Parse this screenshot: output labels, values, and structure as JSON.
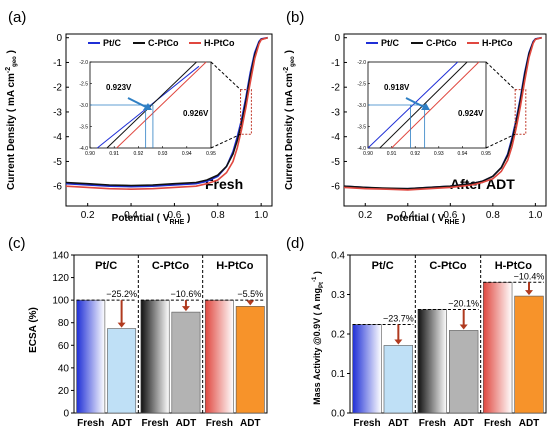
{
  "chart_data": [
    {
      "panel": "(a)",
      "type": "line",
      "ylabel": "Current Density ( mA cm",
      "ylabel_sup": "-2",
      "ylabel_sub": "geo",
      "ylabel_end": " )",
      "xlabel": "Potential ( V",
      "xlabel_sub": "RHE",
      "xlabel_end": " )",
      "xlim": [
        0.1,
        1.05
      ],
      "ylim": [
        -6.8,
        0.15
      ],
      "xticks": [
        "0.2",
        "0.4",
        "0.6",
        "0.8",
        "1.0"
      ],
      "yticks": [
        "0",
        "-1",
        "-2",
        "-3",
        "-4",
        "-5",
        "-6"
      ],
      "annotation": "Fresh",
      "series": [
        {
          "name": "Pt/C",
          "color": "#1f2fd6",
          "x": [
            0.1,
            0.2,
            0.3,
            0.4,
            0.5,
            0.6,
            0.7,
            0.75,
            0.8,
            0.84,
            0.87,
            0.89,
            0.91,
            0.92,
            0.93,
            0.94,
            0.95,
            0.97,
            0.99,
            1.0,
            1.03
          ],
          "y": [
            -5.9,
            -5.95,
            -6.0,
            -6.02,
            -6.0,
            -5.95,
            -5.9,
            -5.8,
            -5.6,
            -5.2,
            -4.6,
            -4.0,
            -3.3,
            -2.85,
            -2.4,
            -1.9,
            -1.4,
            -0.6,
            -0.15,
            -0.05,
            0.0
          ]
        },
        {
          "name": "C-PtCo",
          "color": "#111111",
          "x": [
            0.1,
            0.2,
            0.3,
            0.4,
            0.5,
            0.6,
            0.7,
            0.75,
            0.8,
            0.84,
            0.87,
            0.89,
            0.91,
            0.92,
            0.93,
            0.94,
            0.95,
            0.97,
            0.99,
            1.0,
            1.03
          ],
          "y": [
            -5.85,
            -5.9,
            -5.95,
            -5.97,
            -5.95,
            -5.9,
            -5.85,
            -5.75,
            -5.55,
            -5.2,
            -4.7,
            -4.15,
            -3.45,
            -3.0,
            -2.55,
            -2.05,
            -1.55,
            -0.7,
            -0.2,
            -0.07,
            0.0
          ]
        },
        {
          "name": "H-PtCo",
          "color": "#e0473f",
          "x": [
            0.1,
            0.2,
            0.3,
            0.4,
            0.5,
            0.6,
            0.7,
            0.75,
            0.8,
            0.84,
            0.87,
            0.89,
            0.91,
            0.92,
            0.93,
            0.94,
            0.95,
            0.97,
            0.99,
            1.0,
            1.03
          ],
          "y": [
            -6.0,
            -6.05,
            -6.1,
            -6.12,
            -6.1,
            -6.05,
            -6.0,
            -5.9,
            -5.75,
            -5.45,
            -5.0,
            -4.45,
            -3.7,
            -3.25,
            -2.8,
            -2.3,
            -1.8,
            -0.85,
            -0.25,
            -0.08,
            0.0
          ]
        }
      ],
      "inset": {
        "xlim": [
          0.9,
          0.95
        ],
        "ylim": [
          -4.0,
          -2.0
        ],
        "xticks": [
          "0.90",
          "0.91",
          "0.92",
          "0.93",
          "0.94",
          "0.95"
        ],
        "yticks": [
          "-2.0",
          "-2.5",
          "-3.0",
          "-3.5",
          "-4.0"
        ],
        "labels": [
          "0.923V",
          "0.926V"
        ],
        "marks": [
          0.923,
          0.926
        ],
        "series_y": [
          [
            -4.0,
            -2.1
          ],
          [
            -4.0,
            -2.0
          ],
          [
            -4.0,
            -2.0
          ]
        ],
        "series_x": [
          [
            0.903,
            0.945
          ],
          [
            0.907,
            0.944
          ],
          [
            0.911,
            0.948
          ]
        ]
      }
    },
    {
      "panel": "(b)",
      "type": "line",
      "ylabel": "Current Density ( mA cm",
      "ylabel_sup": "-2",
      "ylabel_sub": "geo",
      "ylabel_end": " )",
      "xlabel": "Potential ( V",
      "xlabel_sub": "RHE",
      "xlabel_end": " )",
      "xlim": [
        0.1,
        1.05
      ],
      "ylim": [
        -6.8,
        0.15
      ],
      "xticks": [
        "0.2",
        "0.4",
        "0.6",
        "0.8",
        "1.0"
      ],
      "yticks": [
        "0",
        "-1",
        "-2",
        "-3",
        "-4",
        "-5",
        "-6"
      ],
      "annotation": "After ADT",
      "series": [
        {
          "name": "Pt/C",
          "color": "#1f2fd6",
          "x": [
            0.1,
            0.2,
            0.3,
            0.4,
            0.5,
            0.6,
            0.7,
            0.75,
            0.8,
            0.84,
            0.87,
            0.89,
            0.91,
            0.92,
            0.93,
            0.94,
            0.95,
            0.97,
            0.99,
            1.0,
            1.03
          ],
          "y": [
            -6.0,
            -6.05,
            -6.1,
            -6.1,
            -6.05,
            -6.0,
            -5.9,
            -5.8,
            -5.6,
            -5.25,
            -4.7,
            -4.05,
            -3.3,
            -2.85,
            -2.4,
            -1.9,
            -1.4,
            -0.6,
            -0.15,
            -0.05,
            0.0
          ]
        },
        {
          "name": "C-PtCo",
          "color": "#111111",
          "x": [
            0.1,
            0.2,
            0.3,
            0.4,
            0.5,
            0.6,
            0.7,
            0.75,
            0.8,
            0.84,
            0.87,
            0.89,
            0.91,
            0.92,
            0.93,
            0.94,
            0.95,
            0.97,
            0.99,
            1.0,
            1.03
          ],
          "y": [
            -6.0,
            -6.05,
            -6.08,
            -6.1,
            -6.05,
            -6.0,
            -5.9,
            -5.8,
            -5.6,
            -5.25,
            -4.75,
            -4.15,
            -3.4,
            -2.95,
            -2.5,
            -2.0,
            -1.5,
            -0.65,
            -0.18,
            -0.06,
            0.0
          ]
        },
        {
          "name": "H-PtCo",
          "color": "#e0473f",
          "x": [
            0.1,
            0.2,
            0.3,
            0.4,
            0.5,
            0.6,
            0.7,
            0.75,
            0.8,
            0.84,
            0.87,
            0.89,
            0.91,
            0.92,
            0.93,
            0.94,
            0.95,
            0.97,
            0.99,
            1.0,
            1.03
          ],
          "y": [
            -6.05,
            -6.1,
            -6.12,
            -6.15,
            -6.1,
            -6.05,
            -5.95,
            -5.85,
            -5.7,
            -5.4,
            -4.95,
            -4.4,
            -3.65,
            -3.2,
            -2.75,
            -2.25,
            -1.75,
            -0.8,
            -0.22,
            -0.07,
            0.0
          ]
        }
      ],
      "inset": {
        "xlim": [
          0.9,
          0.95
        ],
        "ylim": [
          -4.0,
          -2.0
        ],
        "xticks": [
          "0.90",
          "0.91",
          "0.92",
          "0.93",
          "0.94",
          "0.95"
        ],
        "yticks": [
          "-2.0",
          "-2.5",
          "-3.0",
          "-3.5",
          "-4.0"
        ],
        "labels": [
          "0.918V",
          "0.924V"
        ],
        "marks": [
          0.918,
          0.924
        ],
        "series_y": [
          [
            -4.0,
            -2.0
          ],
          [
            -4.0,
            -2.0
          ],
          [
            -4.0,
            -2.0
          ]
        ],
        "series_x": [
          [
            0.9,
            0.938
          ],
          [
            0.905,
            0.942
          ],
          [
            0.91,
            0.947
          ]
        ]
      }
    },
    {
      "panel": "(c)",
      "type": "bar",
      "ylabel": "ECSA (%)",
      "ylim": [
        0,
        140
      ],
      "yticks": [
        "0",
        "20",
        "40",
        "60",
        "80",
        "100",
        "120",
        "140"
      ],
      "groups": [
        "Pt/C",
        "C-PtCo",
        "H-PtCo"
      ],
      "categories": [
        "Fresh",
        "ADT",
        "Fresh",
        "ADT",
        "Fresh",
        "ADT"
      ],
      "values": [
        100,
        74.8,
        100,
        89.4,
        100,
        94.5
      ],
      "changes": [
        "−25.2%",
        "−10.6%",
        "−5.5%"
      ],
      "colors": [
        "#1f2fd6",
        "#111111",
        "#e0473f"
      ]
    },
    {
      "panel": "(d)",
      "type": "bar",
      "ylabel": "Mass Activity @0.9V ( A mg",
      "ylabel_sub": "Pt",
      "ylabel_sup": "-1",
      "ylabel_end": " )",
      "ylim": [
        0,
        0.4
      ],
      "yticks": [
        "0.0",
        "0.1",
        "0.2",
        "0.3",
        "0.4"
      ],
      "groups": [
        "Pt/C",
        "C-PtCo",
        "H-PtCo"
      ],
      "categories": [
        "Fresh",
        "ADT",
        "Fresh",
        "ADT",
        "Fresh",
        "ADT"
      ],
      "values": [
        0.224,
        0.171,
        0.262,
        0.209,
        0.331,
        0.296
      ],
      "changes": [
        "−23.7%",
        "−20.1%",
        "−10.4%"
      ],
      "colors": [
        "#1f2fd6",
        "#111111",
        "#e0473f"
      ]
    }
  ]
}
